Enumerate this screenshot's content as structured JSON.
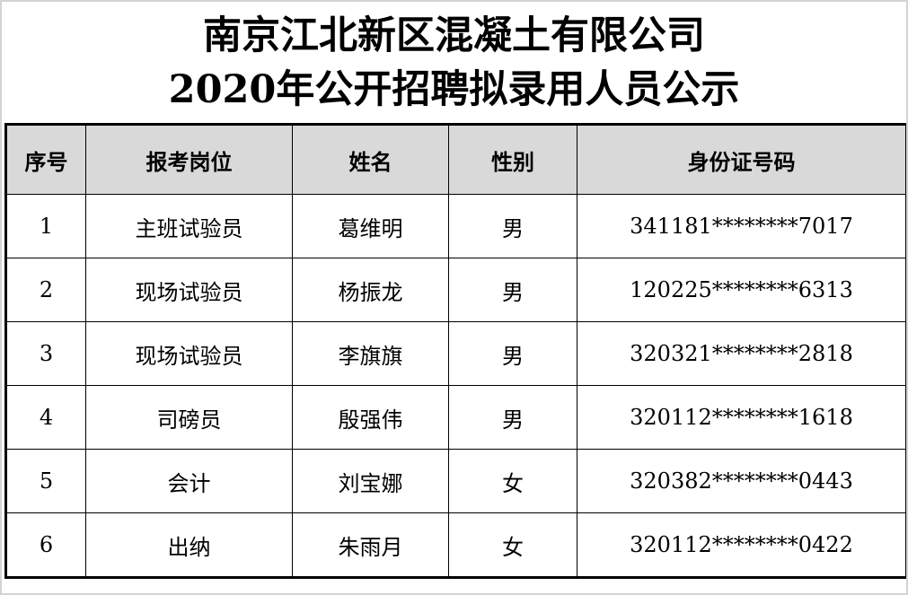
{
  "page": {
    "title_line1": "南京江北新区混凝土有限公司",
    "title_line2": "2020年公开招聘拟录用人员公示",
    "frame_color": "#d4d4d4"
  },
  "table": {
    "header_bg": "#d9d9d9",
    "border_color": "#000000",
    "columns": [
      "序号",
      "报考岗位",
      "姓名",
      "性别",
      "身份证号码"
    ],
    "column_keys": [
      "index",
      "position",
      "name",
      "gender",
      "id-number"
    ],
    "rows": [
      [
        "1",
        "主班试验员",
        "葛维明",
        "男",
        "341181********7017"
      ],
      [
        "2",
        "现场试验员",
        "杨振龙",
        "男",
        "120225********6313"
      ],
      [
        "3",
        "现场试验员",
        "李旗旗",
        "男",
        "320321********2818"
      ],
      [
        "4",
        "司磅员",
        "殷强伟",
        "男",
        "320112********1618"
      ],
      [
        "5",
        "会计",
        "刘宝娜",
        "女",
        "320382********0443"
      ],
      [
        "6",
        "出纳",
        "朱雨月",
        "女",
        "320112********0422"
      ]
    ]
  }
}
